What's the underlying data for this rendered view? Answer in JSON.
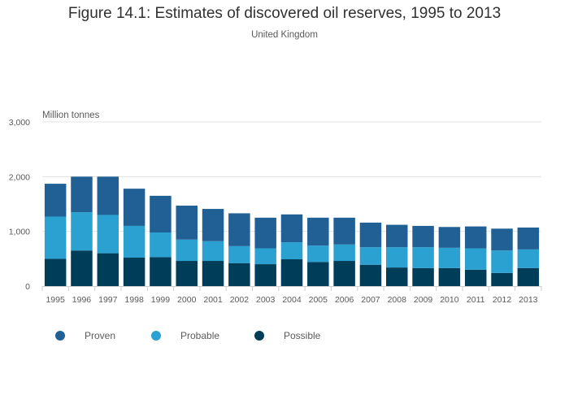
{
  "chart_data": {
    "type": "bar",
    "stacked": true,
    "title": "Figure 14.1: Estimates of discovered oil reserves, 1995 to 2013",
    "subtitle": "United Kingdom",
    "ylabel": "Million tonnes",
    "ylim": [
      0,
      3000
    ],
    "yticks": [
      "0",
      "1,000",
      "2,000",
      "3,000"
    ],
    "grid": true,
    "legend_position": "bottom-left",
    "categories": [
      "1995",
      "1996",
      "1997",
      "1998",
      "1999",
      "2000",
      "2001",
      "2002",
      "2003",
      "2004",
      "2005",
      "2006",
      "2007",
      "2008",
      "2009",
      "2010",
      "2011",
      "2012",
      "2013"
    ],
    "series": [
      {
        "name": "Possible",
        "color": "#003d59",
        "values": [
          500,
          650,
          600,
          520,
          530,
          460,
          460,
          420,
          400,
          490,
          440,
          460,
          390,
          340,
          330,
          330,
          300,
          240,
          330
        ]
      },
      {
        "name": "Probable",
        "color": "#2aa1d1",
        "values": [
          770,
          700,
          700,
          580,
          450,
          390,
          360,
          310,
          290,
          310,
          300,
          300,
          320,
          370,
          380,
          370,
          390,
          410,
          340
        ]
      },
      {
        "name": "Proven",
        "color": "#206095",
        "values": [
          600,
          650,
          700,
          680,
          670,
          620,
          590,
          600,
          560,
          510,
          510,
          490,
          450,
          410,
          390,
          380,
          400,
          400,
          400
        ]
      }
    ],
    "legend_order": [
      "Proven",
      "Probable",
      "Possible"
    ]
  }
}
